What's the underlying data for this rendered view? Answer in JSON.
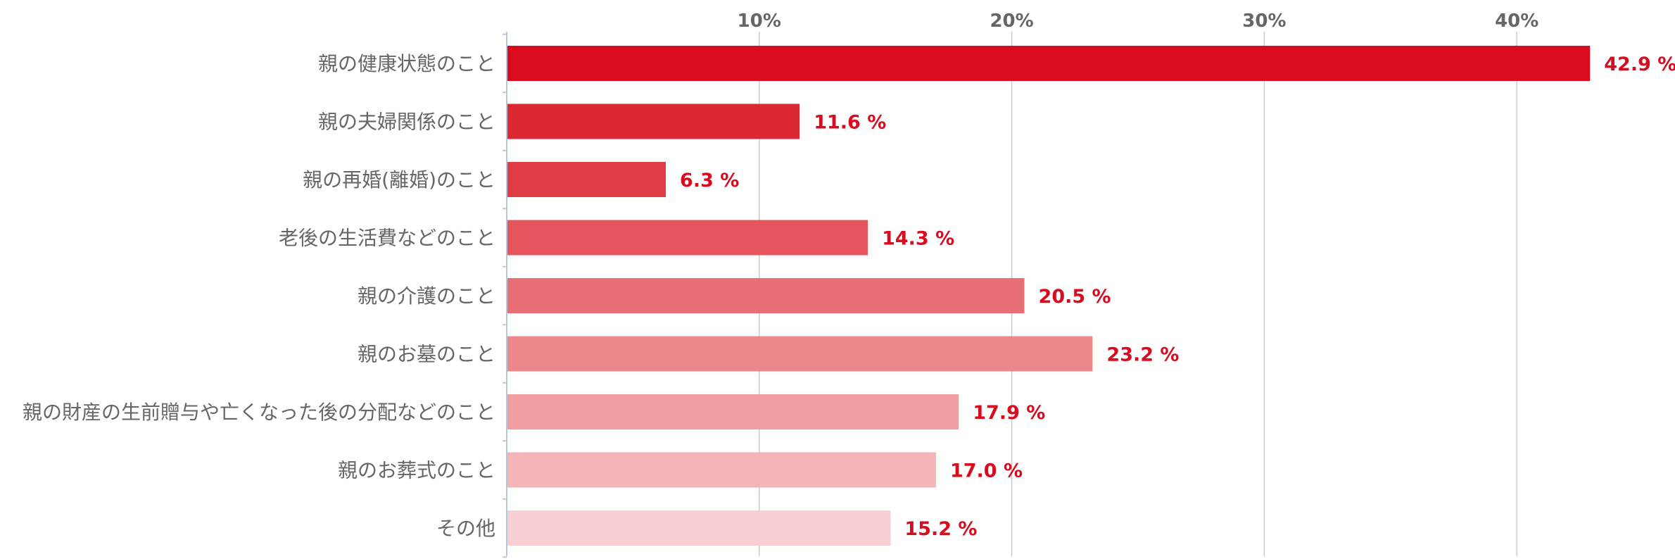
{
  "chart_data": {
    "type": "bar",
    "orientation": "horizontal",
    "categories": [
      "親の健康状態のこと",
      "親の夫婦関係のこと",
      "親の再婚(離婚)のこと",
      "老後の生活費などのこと",
      "親の介護のこと",
      "親のお墓のこと",
      "親の財産の生前贈与や亡くなった後の分配などのこと",
      "親のお葬式のこと",
      "その他"
    ],
    "values": [
      42.9,
      11.6,
      6.3,
      14.3,
      20.5,
      23.2,
      17.9,
      17.0,
      15.2
    ],
    "value_labels": [
      "42.9 %",
      "11.6 %",
      "6.3 %",
      "14.3 %",
      "20.5 %",
      "23.2 %",
      "17.9 %",
      "17.0 %",
      "15.2 %"
    ],
    "xticks": [
      10,
      20,
      30,
      40
    ],
    "xtick_labels": [
      "10%",
      "20%",
      "30%",
      "40%"
    ],
    "xlim": [
      0,
      46
    ],
    "tick_position": "top",
    "grid": true,
    "title": "",
    "xlabel": "",
    "ylabel": "",
    "colors": {
      "bars": [
        "#d80c1e",
        "#dc2833",
        "#df3d46",
        "#e4555d",
        "#e86f75",
        "#ec878c",
        "#f09ea2",
        "#f3b5b8",
        "#f7cfd2"
      ],
      "value_label": "#d80c1e",
      "category_label": "#666666",
      "tick_label": "#666666",
      "grid": "#cccccc",
      "axis": "#b5c8dc"
    }
  }
}
